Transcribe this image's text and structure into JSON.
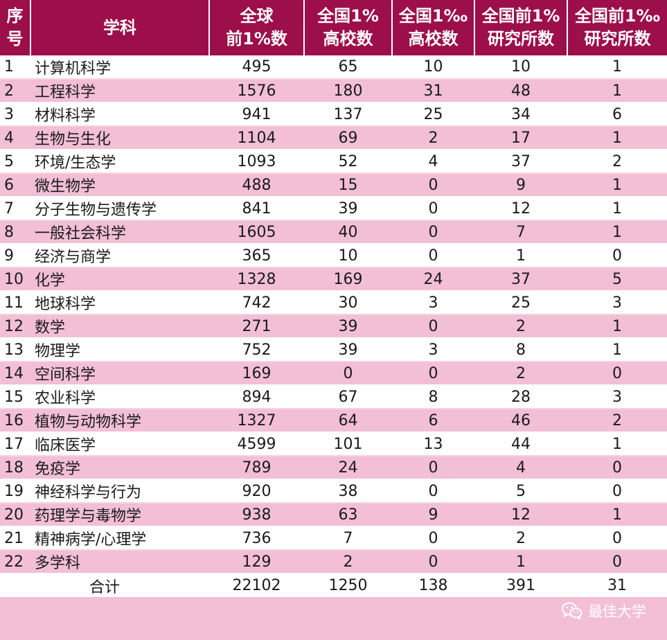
{
  "header": {
    "index": [
      "序",
      "号"
    ],
    "subject": "学科",
    "col_global": [
      "全球",
      "前1%数"
    ],
    "col_cn_univ_1pct": [
      "全国1%",
      "高校数"
    ],
    "col_cn_univ_1permille": [
      "全国1‰",
      "高校数"
    ],
    "col_cn_inst_1pct": [
      "全国前1%",
      "研究所数"
    ],
    "col_cn_inst_1permille": [
      "全国前1‰",
      "研究所数"
    ]
  },
  "rows": [
    {
      "idx": "1",
      "subject": "计算机科学",
      "global": "495",
      "univ1": "65",
      "univ2": "10",
      "inst1": "10",
      "inst2": "1"
    },
    {
      "idx": "2",
      "subject": "工程科学",
      "global": "1576",
      "univ1": "180",
      "univ2": "31",
      "inst1": "48",
      "inst2": "1"
    },
    {
      "idx": "3",
      "subject": "材料科学",
      "global": "941",
      "univ1": "137",
      "univ2": "25",
      "inst1": "34",
      "inst2": "6"
    },
    {
      "idx": "4",
      "subject": "生物与生化",
      "global": "1104",
      "univ1": "69",
      "univ2": "2",
      "inst1": "17",
      "inst2": "1"
    },
    {
      "idx": "5",
      "subject": "环境/生态学",
      "global": "1093",
      "univ1": "52",
      "univ2": "4",
      "inst1": "37",
      "inst2": "2"
    },
    {
      "idx": "6",
      "subject": "微生物学",
      "global": "488",
      "univ1": "15",
      "univ2": "0",
      "inst1": "9",
      "inst2": "1"
    },
    {
      "idx": "7",
      "subject": "分子生物与遗传学",
      "global": "841",
      "univ1": "39",
      "univ2": "0",
      "inst1": "12",
      "inst2": "1"
    },
    {
      "idx": "8",
      "subject": "一般社会科学",
      "global": "1605",
      "univ1": "40",
      "univ2": "0",
      "inst1": "7",
      "inst2": "1"
    },
    {
      "idx": "9",
      "subject": "经济与商学",
      "global": "365",
      "univ1": "10",
      "univ2": "0",
      "inst1": "1",
      "inst2": "0"
    },
    {
      "idx": "10",
      "subject": "化学",
      "global": "1328",
      "univ1": "169",
      "univ2": "24",
      "inst1": "37",
      "inst2": "5"
    },
    {
      "idx": "11",
      "subject": "地球科学",
      "global": "742",
      "univ1": "30",
      "univ2": "3",
      "inst1": "25",
      "inst2": "3"
    },
    {
      "idx": "12",
      "subject": "数学",
      "global": "271",
      "univ1": "39",
      "univ2": "0",
      "inst1": "2",
      "inst2": "1"
    },
    {
      "idx": "13",
      "subject": "物理学",
      "global": "752",
      "univ1": "39",
      "univ2": "3",
      "inst1": "8",
      "inst2": "1"
    },
    {
      "idx": "14",
      "subject": "空间科学",
      "global": "169",
      "univ1": "0",
      "univ2": "0",
      "inst1": "2",
      "inst2": "0"
    },
    {
      "idx": "15",
      "subject": "农业科学",
      "global": "894",
      "univ1": "67",
      "univ2": "8",
      "inst1": "28",
      "inst2": "3"
    },
    {
      "idx": "16",
      "subject": "植物与动物科学",
      "global": "1327",
      "univ1": "64",
      "univ2": "6",
      "inst1": "46",
      "inst2": "2"
    },
    {
      "idx": "17",
      "subject": "临床医学",
      "global": "4599",
      "univ1": "101",
      "univ2": "13",
      "inst1": "44",
      "inst2": "1"
    },
    {
      "idx": "18",
      "subject": "免疫学",
      "global": "789",
      "univ1": "24",
      "univ2": "0",
      "inst1": "4",
      "inst2": "0"
    },
    {
      "idx": "19",
      "subject": "神经科学与行为",
      "global": "920",
      "univ1": "38",
      "univ2": "0",
      "inst1": "5",
      "inst2": "0"
    },
    {
      "idx": "20",
      "subject": "药理学与毒物学",
      "global": "938",
      "univ1": "63",
      "univ2": "9",
      "inst1": "12",
      "inst2": "1"
    },
    {
      "idx": "21",
      "subject": "精神病学/心理学",
      "global": "736",
      "univ1": "7",
      "univ2": "0",
      "inst1": "2",
      "inst2": "0"
    },
    {
      "idx": "22",
      "subject": "多学科",
      "global": "129",
      "univ1": "2",
      "univ2": "0",
      "inst1": "1",
      "inst2": "0"
    }
  ],
  "total": {
    "label": "合计",
    "global": "22102",
    "univ1": "1250",
    "univ2": "138",
    "inst1": "391",
    "inst2": "31"
  },
  "watermark": {
    "icon": "wechat-icon",
    "text": "最佳大学"
  },
  "colors": {
    "header_bg": "#9c0f4b",
    "stripe_pink": "#f2bfd6",
    "stripe_white": "#ffffff"
  }
}
